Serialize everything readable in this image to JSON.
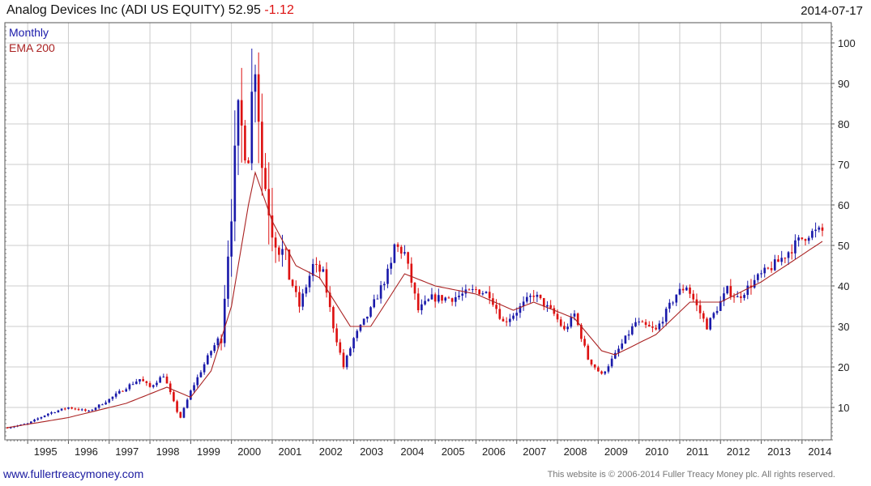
{
  "header": {
    "title": "Analog Devices Inc (ADI US EQUITY)",
    "last": "52.95",
    "change": "-1.12",
    "date": "2014-07-17"
  },
  "legend": {
    "period": "Monthly",
    "ema": "EMA 200"
  },
  "footer": {
    "site": "www.fullertreacymoney.com",
    "notice": "This website is © 2006-2014 Fuller Treacy Money plc. All rights reserved."
  },
  "colors": {
    "up": "#1a1aaa",
    "down": "#dd1111",
    "ema": "#aa2222",
    "grid": "#cccccc"
  },
  "chart_data": {
    "type": "candlestick",
    "period": "monthly",
    "y_ticks": [
      10,
      20,
      30,
      40,
      50,
      60,
      70,
      80,
      90,
      100
    ],
    "ylim": [
      2,
      105
    ],
    "x_ticks": [
      "1995",
      "1996",
      "1997",
      "1998",
      "1999",
      "2000",
      "2001",
      "2002",
      "2003",
      "2004",
      "2005",
      "2006",
      "2007",
      "2008",
      "2009",
      "2010",
      "2011",
      "2012",
      "2013",
      "2014"
    ],
    "x_start": "1994-07",
    "x_end": "2014-07",
    "grid": true,
    "legend_position": "top-left",
    "close_anchors": [
      [
        "1994-07",
        5.0
      ],
      [
        "1995-01",
        6.0
      ],
      [
        "1995-07",
        8.5
      ],
      [
        "1996-01",
        10.0
      ],
      [
        "1996-07",
        9.0
      ],
      [
        "1997-01",
        12.0
      ],
      [
        "1997-07",
        15.5
      ],
      [
        "1997-10",
        17.0
      ],
      [
        "1998-01",
        15.0
      ],
      [
        "1998-05",
        18.0
      ],
      [
        "1998-09",
        9.0
      ],
      [
        "1998-10",
        7.5
      ],
      [
        "1999-01",
        14.0
      ],
      [
        "1999-07",
        24.0
      ],
      [
        "1999-10",
        28.0
      ],
      [
        "2000-01",
        60.0
      ],
      [
        "2000-03",
        80.0
      ],
      [
        "2000-06",
        75.0
      ],
      [
        "2000-08",
        98.0
      ],
      [
        "2000-10",
        70.0
      ],
      [
        "2001-01",
        55.0
      ],
      [
        "2001-04",
        48.0
      ],
      [
        "2001-09",
        35.0
      ],
      [
        "2002-01",
        45.0
      ],
      [
        "2002-04",
        43.0
      ],
      [
        "2002-07",
        30.0
      ],
      [
        "2002-10",
        20.0
      ],
      [
        "2003-01",
        27.0
      ],
      [
        "2003-06",
        34.0
      ],
      [
        "2003-12",
        45.0
      ],
      [
        "2004-01",
        50.0
      ],
      [
        "2004-04",
        48.0
      ],
      [
        "2004-08",
        34.0
      ],
      [
        "2004-12",
        37.0
      ],
      [
        "2005-06",
        37.0
      ],
      [
        "2006-01",
        39.0
      ],
      [
        "2006-05",
        38.0
      ],
      [
        "2006-09",
        31.0
      ],
      [
        "2006-12",
        33.0
      ],
      [
        "2007-06",
        38.0
      ],
      [
        "2007-12",
        33.0
      ],
      [
        "2008-03",
        29.0
      ],
      [
        "2008-06",
        33.0
      ],
      [
        "2008-10",
        22.0
      ],
      [
        "2009-02",
        18.0
      ],
      [
        "2009-06",
        23.0
      ],
      [
        "2009-12",
        31.0
      ],
      [
        "2010-06",
        29.0
      ],
      [
        "2010-12",
        38.0
      ],
      [
        "2011-03",
        40.0
      ],
      [
        "2011-09",
        30.0
      ],
      [
        "2012-03",
        39.0
      ],
      [
        "2012-06",
        37.0
      ],
      [
        "2012-12",
        42.0
      ],
      [
        "2013-06",
        46.0
      ],
      [
        "2013-12",
        51.0
      ],
      [
        "2014-03",
        53.0
      ],
      [
        "2014-07",
        53.5
      ]
    ],
    "ema_anchors": [
      [
        "1994-07",
        5.0
      ],
      [
        "1996-01",
        7.5
      ],
      [
        "1997-06",
        11.0
      ],
      [
        "1998-06",
        15.0
      ],
      [
        "1999-01",
        12.5
      ],
      [
        "1999-07",
        19.0
      ],
      [
        "2000-01",
        35.0
      ],
      [
        "2000-06",
        60.0
      ],
      [
        "2000-08",
        68.0
      ],
      [
        "2001-01",
        56.0
      ],
      [
        "2001-08",
        45.0
      ],
      [
        "2002-03",
        42.0
      ],
      [
        "2002-12",
        30.0
      ],
      [
        "2003-06",
        30.0
      ],
      [
        "2004-04",
        43.0
      ],
      [
        "2005-01",
        40.0
      ],
      [
        "2006-01",
        38.0
      ],
      [
        "2006-12",
        34.0
      ],
      [
        "2007-06",
        36.0
      ],
      [
        "2008-06",
        32.0
      ],
      [
        "2009-02",
        24.0
      ],
      [
        "2009-06",
        23.0
      ],
      [
        "2010-06",
        28.0
      ],
      [
        "2011-04",
        36.0
      ],
      [
        "2012-01",
        36.0
      ],
      [
        "2013-01",
        41.0
      ],
      [
        "2014-07",
        51.0
      ]
    ]
  }
}
